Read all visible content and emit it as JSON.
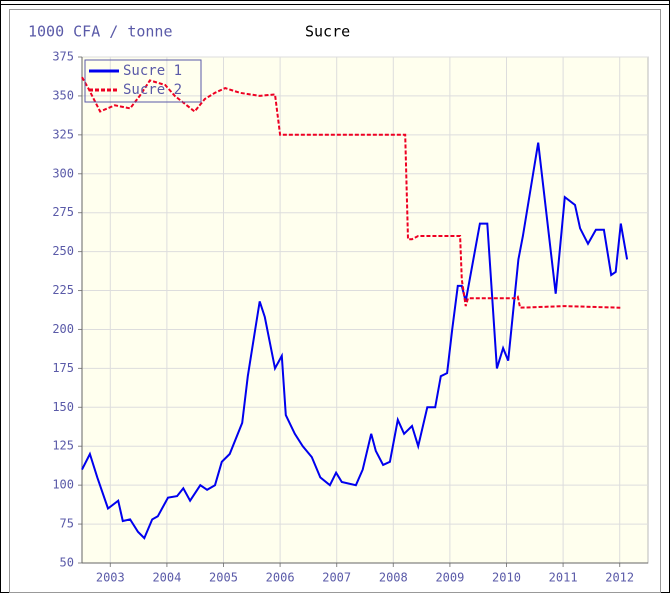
{
  "chart_data": {
    "type": "line",
    "title": "Sucre",
    "ylabel": "1000 CFA / tonne",
    "xlim": [
      2003,
      2013
    ],
    "xticks": [
      {
        "value": 2003.5,
        "label": "2003"
      },
      {
        "value": 2004.5,
        "label": "2004"
      },
      {
        "value": 2005.5,
        "label": "2005"
      },
      {
        "value": 2006.5,
        "label": "2006"
      },
      {
        "value": 2007.5,
        "label": "2007"
      },
      {
        "value": 2008.5,
        "label": "2008"
      },
      {
        "value": 2009.5,
        "label": "2009"
      },
      {
        "value": 2010.5,
        "label": "2010"
      },
      {
        "value": 2011.5,
        "label": "2011"
      },
      {
        "value": 2012.5,
        "label": "2012"
      }
    ],
    "ylim": [
      50,
      375
    ],
    "yticks": [
      50,
      75,
      100,
      125,
      150,
      175,
      200,
      225,
      250,
      275,
      300,
      325,
      350,
      375
    ],
    "grid": true,
    "legend": "upper left",
    "series": [
      {
        "name": "Sucre 1",
        "color": "#0000ee",
        "dash": false,
        "x": [
          2003.0,
          2003.14,
          2003.27,
          2003.46,
          2003.64,
          2003.72,
          2003.85,
          2003.99,
          2004.1,
          2004.24,
          2004.34,
          2004.52,
          2004.68,
          2004.79,
          2004.91,
          2005.09,
          2005.21,
          2005.35,
          2005.47,
          2005.61,
          2005.83,
          2005.93,
          2006.06,
          2006.14,
          2006.23,
          2006.41,
          2006.53,
          2006.6,
          2006.76,
          2006.9,
          2007.06,
          2007.21,
          2007.38,
          2007.49,
          2007.59,
          2007.84,
          2007.96,
          2008.11,
          2008.19,
          2008.32,
          2008.44,
          2008.58,
          2008.69,
          2008.83,
          2008.94,
          2009.1,
          2009.24,
          2009.34,
          2009.45,
          2009.54,
          2009.64,
          2009.71,
          2009.78,
          2010.03,
          2010.16,
          2010.33,
          2010.44,
          2010.53,
          2010.71,
          2010.79,
          2011.06,
          2011.37,
          2011.53,
          2011.71,
          2011.8,
          2011.94,
          2012.08,
          2012.22,
          2012.35,
          2012.43,
          2012.52,
          2012.63
        ],
        "values": [
          110,
          120,
          105,
          85,
          90,
          77,
          78,
          70,
          66,
          78,
          80,
          92,
          93,
          98,
          90,
          100,
          97,
          100,
          115,
          120,
          140,
          170,
          200,
          218,
          208,
          175,
          183,
          145,
          133,
          125,
          118,
          105,
          100,
          108,
          102,
          100,
          110,
          133,
          122,
          113,
          115,
          142,
          133,
          138,
          125,
          150,
          150,
          170,
          172,
          200,
          228,
          228,
          218,
          268,
          268,
          175,
          188,
          180,
          245,
          260,
          320,
          223,
          285,
          280,
          265,
          255,
          264,
          264,
          235,
          237,
          268,
          245
        ]
      },
      {
        "name": "Sucre 2",
        "color": "#ee0022",
        "dash": true,
        "x": [
          2003.0,
          2003.11,
          2003.32,
          2003.58,
          2003.85,
          2004.02,
          2004.2,
          2004.47,
          2004.64,
          2004.99,
          2005.17,
          2005.35,
          2005.53,
          2005.79,
          2006.14,
          2006.41,
          2006.5,
          2008.71,
          2008.76,
          2008.83,
          2008.94,
          2009.68,
          2009.71,
          2009.78,
          2009.82,
          2010.65,
          2010.7,
          2010.74,
          2011.53,
          2012.51
        ],
        "values": [
          362,
          355,
          340,
          344,
          342,
          350,
          360,
          357,
          350,
          340,
          348,
          352,
          355,
          352,
          350,
          351,
          325,
          325,
          258,
          258,
          260,
          260,
          232,
          215,
          220,
          220,
          221,
          214,
          215,
          214
        ]
      }
    ]
  }
}
